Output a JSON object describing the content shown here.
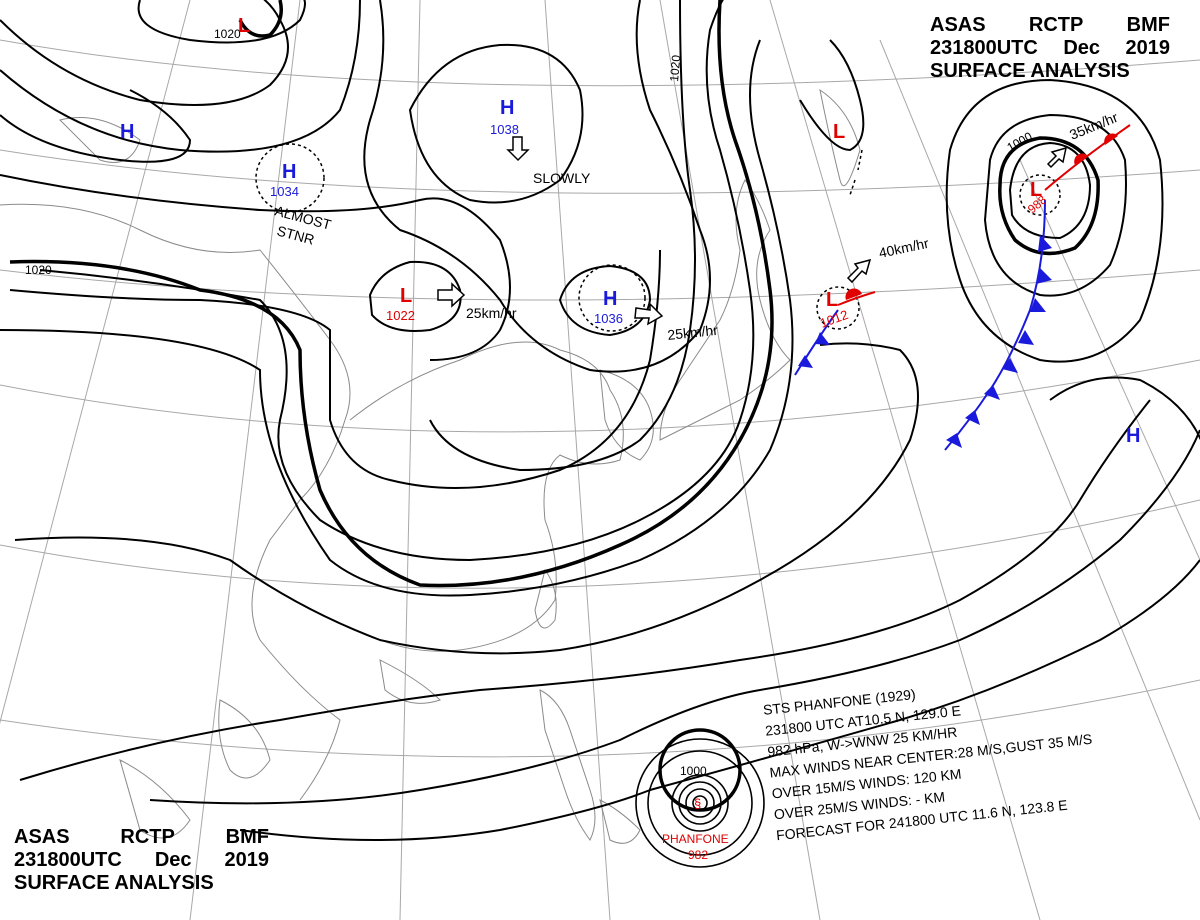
{
  "header": {
    "line1": [
      "ASAS",
      "RCTP",
      "BMF"
    ],
    "line2": [
      "231800UTC",
      "Dec",
      "2019"
    ],
    "line3": "SURFACE ANALYSIS"
  },
  "isobar_labels": [
    "1020",
    "1020",
    "1020",
    "1000",
    "1000"
  ],
  "pressure_centers": [
    {
      "type": "H",
      "value": "1038",
      "color": "#1a1adc"
    },
    {
      "type": "H",
      "value": "1034",
      "color": "#1a1adc"
    },
    {
      "type": "H",
      "value": "1036",
      "color": "#1a1adc"
    },
    {
      "type": "H",
      "value": "",
      "color": "#1a1adc"
    },
    {
      "type": "H",
      "value": "",
      "color": "#1a1adc"
    },
    {
      "type": "L",
      "value": "1022",
      "color": "#e00000"
    },
    {
      "type": "L",
      "value": "1012",
      "color": "#e00000"
    },
    {
      "type": "L",
      "value": "988",
      "color": "#e00000"
    },
    {
      "type": "L",
      "value": "",
      "color": "#e00000"
    },
    {
      "type": "L",
      "value": "",
      "color": "#e00000"
    }
  ],
  "movement_labels": [
    "SLOWLY",
    "ALMOST",
    "STNR",
    "25km/hr",
    "25km/hr",
    "40km/hr",
    "35km/hr"
  ],
  "typhoon": {
    "name": "PHANFONE",
    "pressure": "982",
    "info_lines": [
      "STS PHANFONE (1929)",
      "231800 UTC AT10.5 N, 129.0 E",
      "982 hPa, W->WNW 25 KM/HR",
      "MAX WINDS NEAR CENTER:28 M/S,GUST 35 M/S",
      "OVER 15M/S WINDS: 120 KM",
      "OVER 25M/S WINDS: - KM",
      "FORECAST FOR 241800 UTC 11.6 N, 123.8 E"
    ]
  },
  "colors": {
    "high": "#1a1adc",
    "low": "#e00000",
    "cold_front": "#1a1adc",
    "warm_front": "#e00000",
    "isobar": "#000000",
    "grid": "#9a9a9a"
  }
}
